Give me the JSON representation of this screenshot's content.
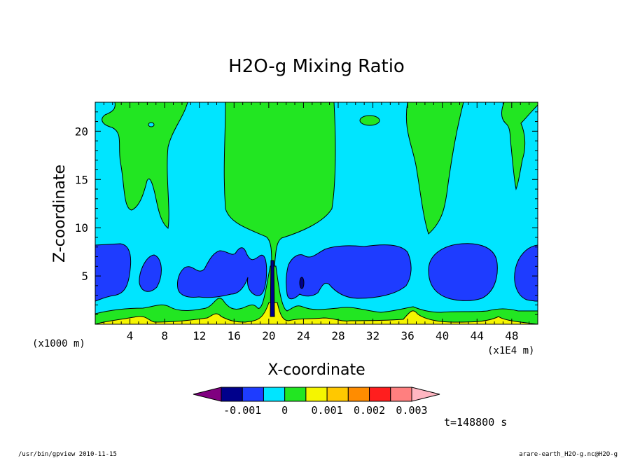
{
  "chart_data": {
    "type": "heatmap",
    "title": "H2O-g Mixing Ratio",
    "xlabel": "X-coordinate",
    "ylabel": "Z-coordinate",
    "x_unit_left": "(x1000 m)",
    "x_unit_right": "(x1E4 m)",
    "xlim": [
      0,
      51
    ],
    "ylim": [
      0,
      23
    ],
    "x_ticks": [
      "4",
      "8",
      "12",
      "16",
      "20",
      "24",
      "28",
      "32",
      "36",
      "40",
      "44",
      "48"
    ],
    "y_ticks": [
      "5",
      "10",
      "15",
      "20"
    ],
    "x_tick_values": [
      4,
      8,
      12,
      16,
      20,
      24,
      28,
      32,
      36,
      40,
      44,
      48
    ],
    "y_tick_values": [
      5,
      10,
      15,
      20
    ],
    "time_label": "t=148800 s",
    "colorbar": {
      "colors": [
        "#800080",
        "#00008b",
        "#1e3cff",
        "#00e5ff",
        "#22e622",
        "#f5f500",
        "#ffc800",
        "#ff8c00",
        "#ff1e1e",
        "#ff7f7f",
        "#ffb6c1"
      ],
      "tick_labels": [
        "-0.001",
        "0",
        "0.001",
        "0.002",
        "0.003"
      ],
      "tick_values": [
        -0.001,
        0,
        0.001,
        0.002,
        0.003
      ]
    },
    "regions": {
      "background": "#00e5ff",
      "moist_columns": "#22e622",
      "dry_layer": "#1e3cff",
      "surface_layer": "#f5f500",
      "driest_core": "#00008b"
    }
  },
  "footer": {
    "program": "/usr/bin/gpview   2010-11-15",
    "source": "arare-earth_H2O-g.nc@H2O-g"
  }
}
